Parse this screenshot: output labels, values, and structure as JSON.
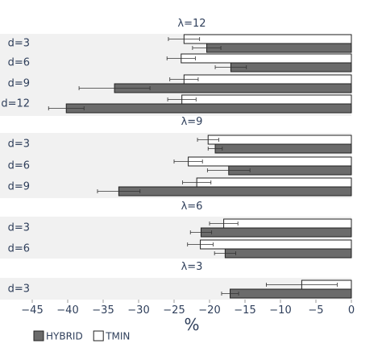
{
  "chart_data": {
    "type": "bar",
    "orientation": "horizontal",
    "xlabel": "%",
    "xlim": [
      -45,
      0
    ],
    "xticks": [
      -45,
      -40,
      -35,
      -30,
      -25,
      -20,
      -15,
      -10,
      -5,
      0
    ],
    "grid": false,
    "legend_position": "bottom-left",
    "series": [
      {
        "name": "HYBRID",
        "color": "#6b6b6b"
      },
      {
        "name": "TMIN",
        "color": "#ffffff"
      }
    ],
    "panels": [
      {
        "title": "λ=12",
        "rows": [
          {
            "label": "d=3",
            "TMIN": -23.6,
            "TMIN_err": 2.2,
            "HYBRID": -20.4,
            "HYBRID_err": 2.0
          },
          {
            "label": "d=6",
            "TMIN": -24.0,
            "TMIN_err": 2.0,
            "HYBRID": -17.0,
            "HYBRID_err": 2.2
          },
          {
            "label": "d=9",
            "TMIN": -23.6,
            "TMIN_err": 2.0,
            "HYBRID": -33.4,
            "HYBRID_err": 5.0
          },
          {
            "label": "d=12",
            "TMIN": -23.9,
            "TMIN_err": 2.0,
            "HYBRID": -40.2,
            "HYBRID_err": 2.5
          }
        ]
      },
      {
        "title": "λ=9",
        "rows": [
          {
            "label": "d=3",
            "TMIN": -20.2,
            "TMIN_err": 1.5,
            "HYBRID": -19.2,
            "HYBRID_err": 1.0
          },
          {
            "label": "d=6",
            "TMIN": -23.0,
            "TMIN_err": 2.0,
            "HYBRID": -17.3,
            "HYBRID_err": 3.0
          },
          {
            "label": "d=9",
            "TMIN": -21.8,
            "TMIN_err": 2.0,
            "HYBRID": -32.8,
            "HYBRID_err": 3.0
          }
        ]
      },
      {
        "title": "λ=6",
        "rows": [
          {
            "label": "d=3",
            "TMIN": -18.0,
            "TMIN_err": 2.0,
            "HYBRID": -21.2,
            "HYBRID_err": 1.5
          },
          {
            "label": "d=6",
            "TMIN": -21.3,
            "TMIN_err": 1.8,
            "HYBRID": -17.8,
            "HYBRID_err": 1.5
          }
        ]
      },
      {
        "title": "λ=3",
        "rows": [
          {
            "label": "d=3",
            "TMIN": -7.0,
            "TMIN_err": 5.0,
            "HYBRID": -17.1,
            "HYBRID_err": 1.2
          }
        ]
      }
    ]
  }
}
